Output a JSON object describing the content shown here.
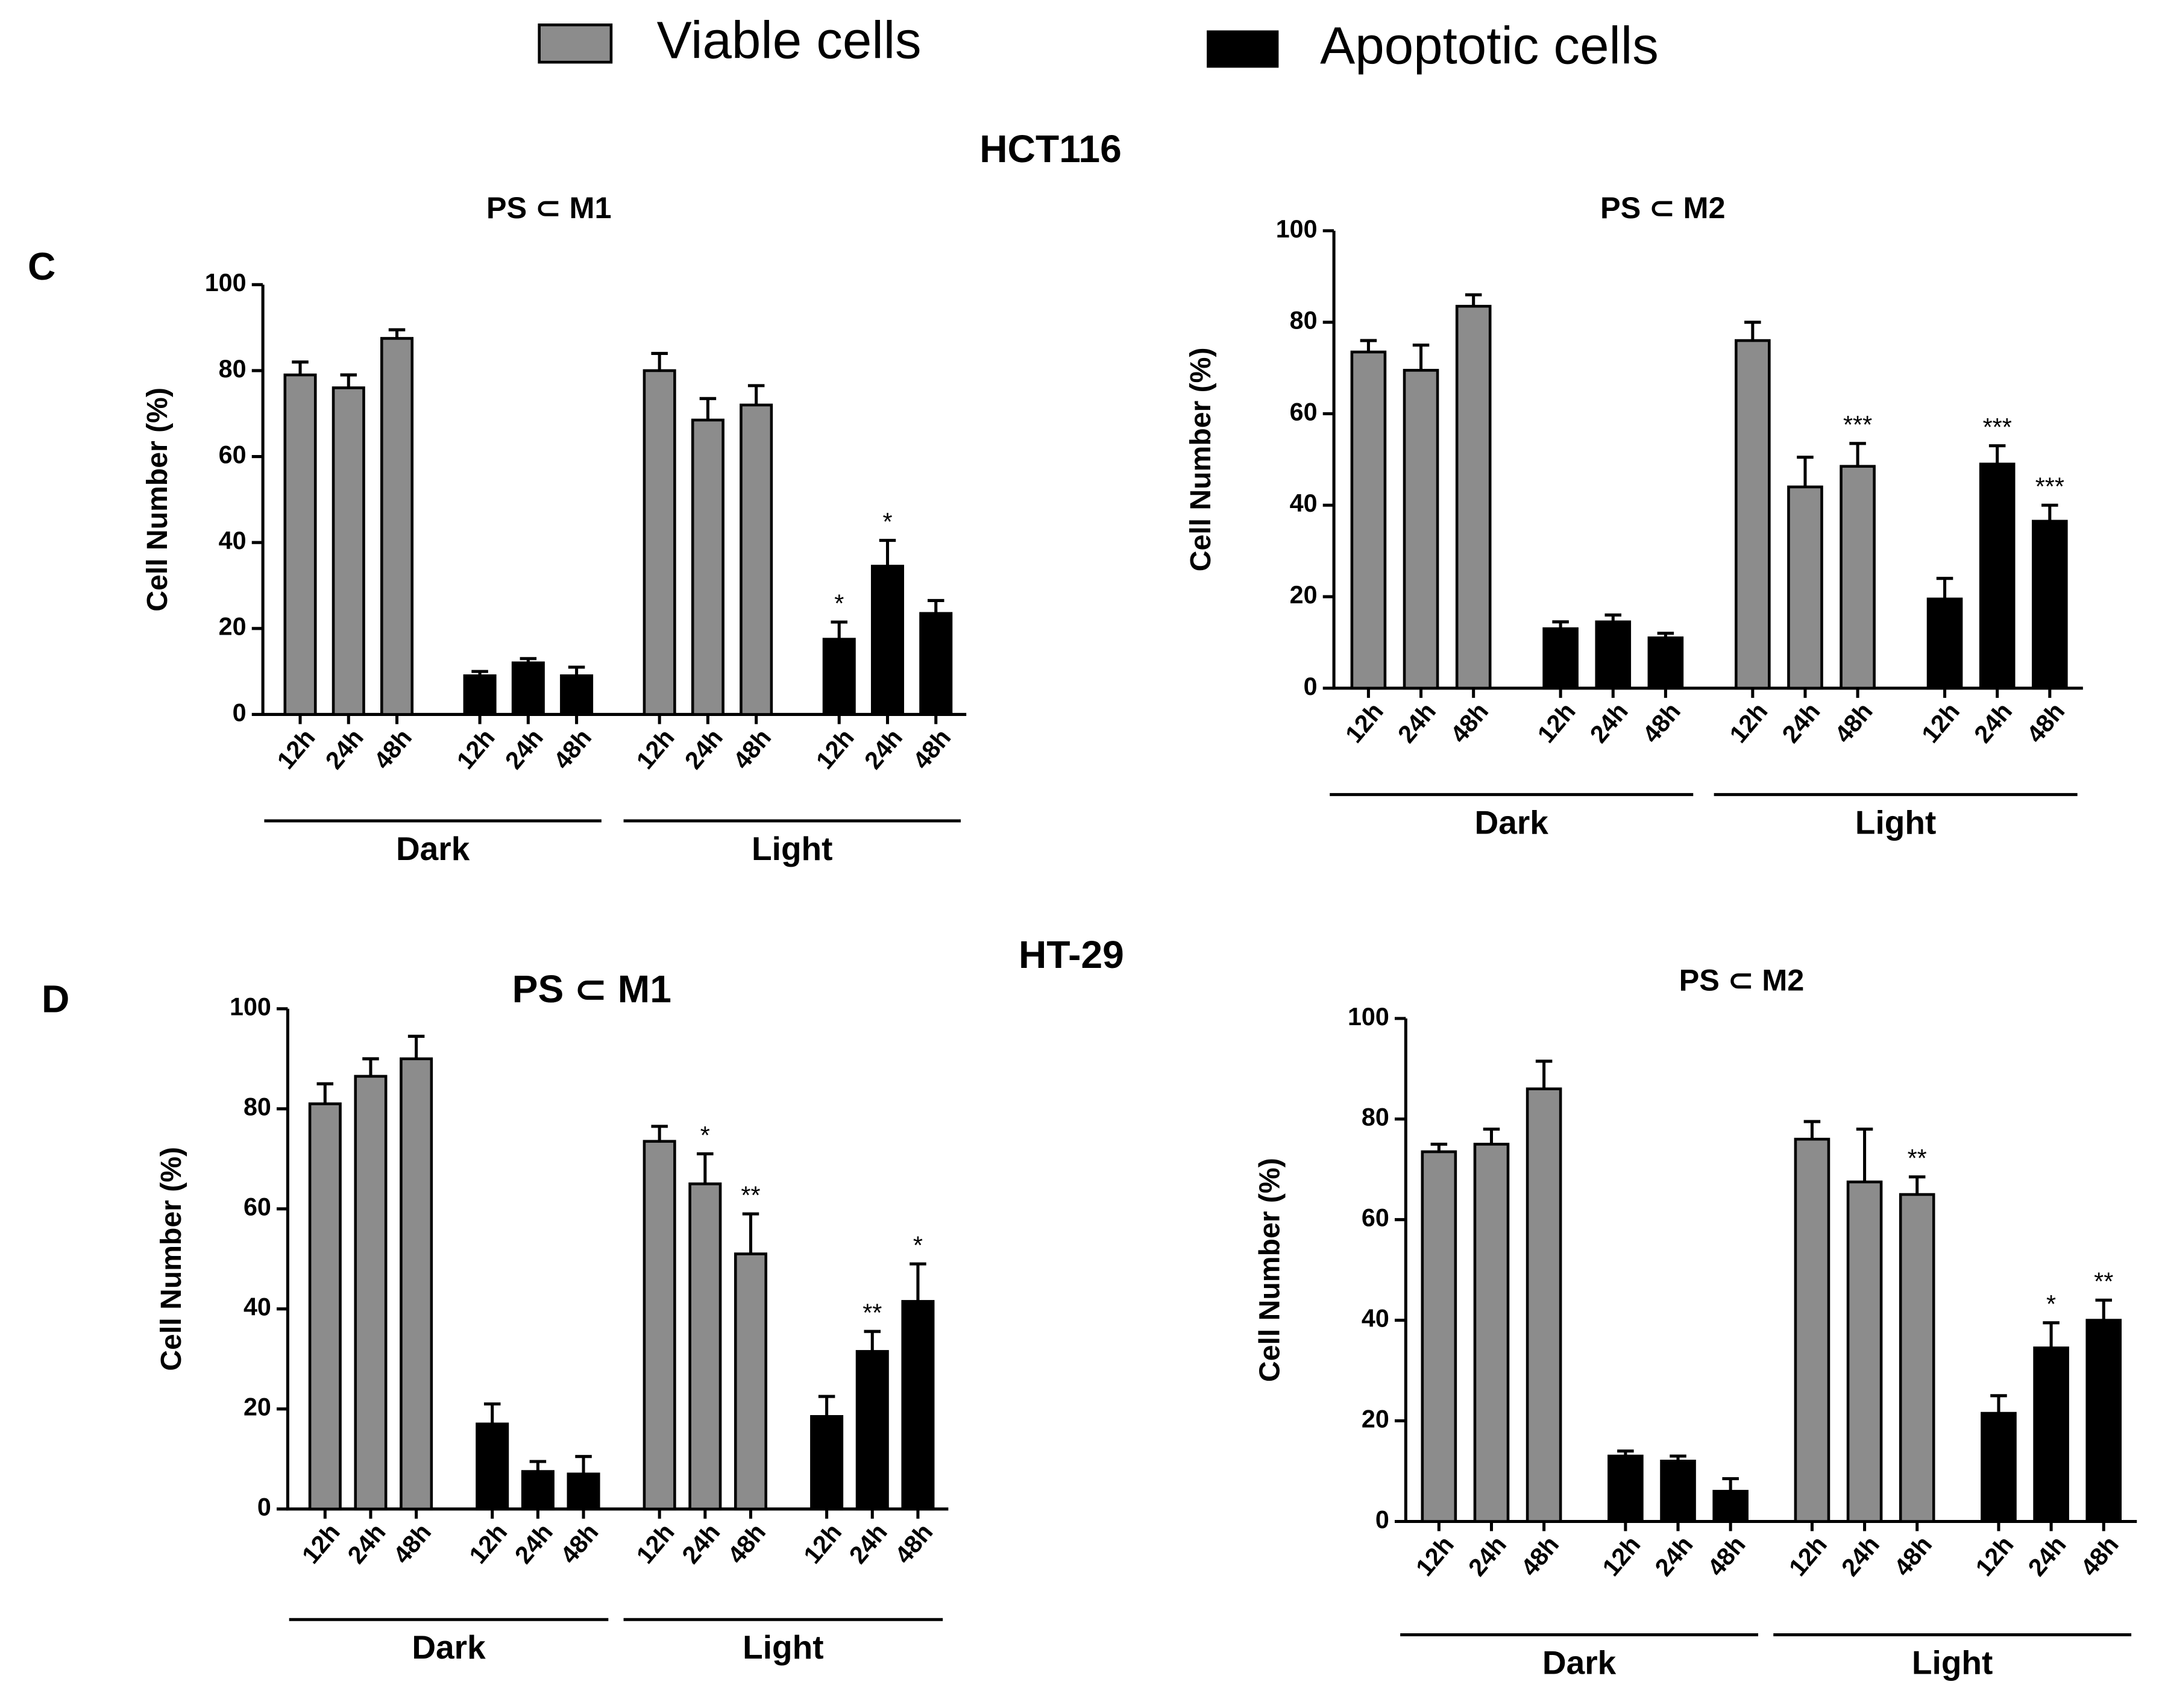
{
  "figure": {
    "sections": [
      {
        "label": "C",
        "cell_line": "HCT116"
      },
      {
        "label": "D",
        "cell_line": "HT-29"
      }
    ]
  },
  "chart_data": [
    {
      "type": "bar",
      "title": "PS ⊂ M1",
      "y_label": "Cell Number (%)",
      "categories": [
        "12h",
        "24h",
        "48h",
        "12h",
        "24h",
        "48h",
        "12h",
        "24h",
        "48h",
        "12h",
        "24h",
        "48h"
      ],
      "groups": [
        "Dark",
        "Light"
      ],
      "ylim": [
        0,
        100
      ],
      "yticks": [
        0,
        20,
        40,
        60,
        80,
        100
      ],
      "series": [
        {
          "name": "Viable cells",
          "color": "#8c8c8c",
          "values": [
            79,
            76,
            87.5,
            null,
            null,
            null,
            80,
            68.5,
            72,
            null,
            null,
            null
          ],
          "errors": [
            3,
            3,
            2,
            null,
            null,
            null,
            4,
            5,
            4.5,
            null,
            null,
            null
          ],
          "annotations": [
            null,
            null,
            null,
            null,
            null,
            null,
            null,
            null,
            null,
            null,
            null,
            null
          ]
        },
        {
          "name": "Apoptotic cells",
          "color": "#000000",
          "values": [
            null,
            null,
            null,
            9,
            12,
            9,
            null,
            null,
            null,
            17.5,
            34.5,
            23.5
          ],
          "errors": [
            null,
            null,
            null,
            1,
            1,
            2,
            null,
            null,
            null,
            4,
            6,
            3
          ],
          "annotations": [
            null,
            null,
            null,
            null,
            null,
            null,
            null,
            null,
            null,
            "*",
            "*",
            null
          ]
        }
      ]
    },
    {
      "type": "bar",
      "title": "PS ⊂ M2",
      "y_label": "Cell Number (%)",
      "categories": [
        "12h",
        "24h",
        "48h",
        "12h",
        "24h",
        "48h",
        "12h",
        "24h",
        "48h",
        "12h",
        "24h",
        "48h"
      ],
      "groups": [
        "Dark",
        "Light"
      ],
      "ylim": [
        0,
        100
      ],
      "yticks": [
        0,
        20,
        40,
        60,
        80,
        100
      ],
      "series": [
        {
          "name": "Viable cells",
          "color": "#8c8c8c",
          "values": [
            73.5,
            69.5,
            83.5,
            null,
            null,
            null,
            76,
            44,
            48.5,
            null,
            null,
            null
          ],
          "errors": [
            2.5,
            5.5,
            2.5,
            null,
            null,
            null,
            4,
            6.5,
            5,
            null,
            null,
            null
          ],
          "annotations": [
            null,
            null,
            null,
            null,
            null,
            null,
            null,
            null,
            "***",
            null,
            null,
            null
          ]
        },
        {
          "name": "Apoptotic cells",
          "color": "#000000",
          "values": [
            null,
            null,
            null,
            13,
            14.5,
            11,
            null,
            null,
            null,
            19.5,
            49,
            36.5
          ],
          "errors": [
            null,
            null,
            null,
            1.5,
            1.5,
            1,
            null,
            null,
            null,
            4.5,
            4,
            3.5
          ],
          "annotations": [
            null,
            null,
            null,
            null,
            null,
            null,
            null,
            null,
            null,
            null,
            "***",
            "***"
          ]
        }
      ]
    },
    {
      "type": "bar",
      "title": "PS ⊂ M1",
      "y_label": "Cell Number (%)",
      "categories": [
        "12h",
        "24h",
        "48h",
        "12h",
        "24h",
        "48h",
        "12h",
        "24h",
        "48h",
        "12h",
        "24h",
        "48h"
      ],
      "groups": [
        "Dark",
        "Light"
      ],
      "ylim": [
        0,
        100
      ],
      "yticks": [
        0,
        20,
        40,
        60,
        80,
        100
      ],
      "series": [
        {
          "name": "Viable cells",
          "color": "#8c8c8c",
          "values": [
            81,
            86.5,
            90,
            null,
            null,
            null,
            73.5,
            65,
            51,
            null,
            null,
            null
          ],
          "errors": [
            4,
            3.5,
            4.5,
            null,
            null,
            null,
            3,
            6,
            8,
            null,
            null,
            null
          ],
          "annotations": [
            null,
            null,
            null,
            null,
            null,
            null,
            null,
            "*",
            "**",
            null,
            null,
            null
          ]
        },
        {
          "name": "Apoptotic cells",
          "color": "#000000",
          "values": [
            null,
            null,
            null,
            17,
            7.5,
            7,
            null,
            null,
            null,
            18.5,
            31.5,
            41.5
          ],
          "errors": [
            null,
            null,
            null,
            4,
            2,
            3.5,
            null,
            null,
            null,
            4,
            4,
            7.5
          ],
          "annotations": [
            null,
            null,
            null,
            null,
            null,
            null,
            null,
            null,
            null,
            null,
            "**",
            "*"
          ]
        }
      ]
    },
    {
      "type": "bar",
      "title": "PS ⊂ M2",
      "y_label": "Cell Number (%)",
      "categories": [
        "12h",
        "24h",
        "48h",
        "12h",
        "24h",
        "48h",
        "12h",
        "24h",
        "48h",
        "12h",
        "24h",
        "48h"
      ],
      "groups": [
        "Dark",
        "Light"
      ],
      "ylim": [
        0,
        100
      ],
      "yticks": [
        0,
        20,
        40,
        60,
        80,
        100
      ],
      "series": [
        {
          "name": "Viable cells",
          "color": "#8c8c8c",
          "values": [
            73.5,
            75,
            86,
            null,
            null,
            null,
            76,
            67.5,
            65,
            null,
            null,
            null
          ],
          "errors": [
            1.5,
            3,
            5.5,
            null,
            null,
            null,
            3.5,
            10.5,
            3.5,
            null,
            null,
            null
          ],
          "annotations": [
            null,
            null,
            null,
            null,
            null,
            null,
            null,
            null,
            "**",
            null,
            null,
            null
          ]
        },
        {
          "name": "Apoptotic cells",
          "color": "#000000",
          "values": [
            null,
            null,
            null,
            13,
            12,
            6,
            null,
            null,
            null,
            21.5,
            34.5,
            40
          ],
          "errors": [
            null,
            null,
            null,
            1,
            1,
            2.5,
            null,
            null,
            null,
            3.5,
            5,
            4
          ],
          "annotations": [
            null,
            null,
            null,
            null,
            null,
            null,
            null,
            null,
            null,
            null,
            "*",
            "**"
          ]
        }
      ]
    }
  ]
}
